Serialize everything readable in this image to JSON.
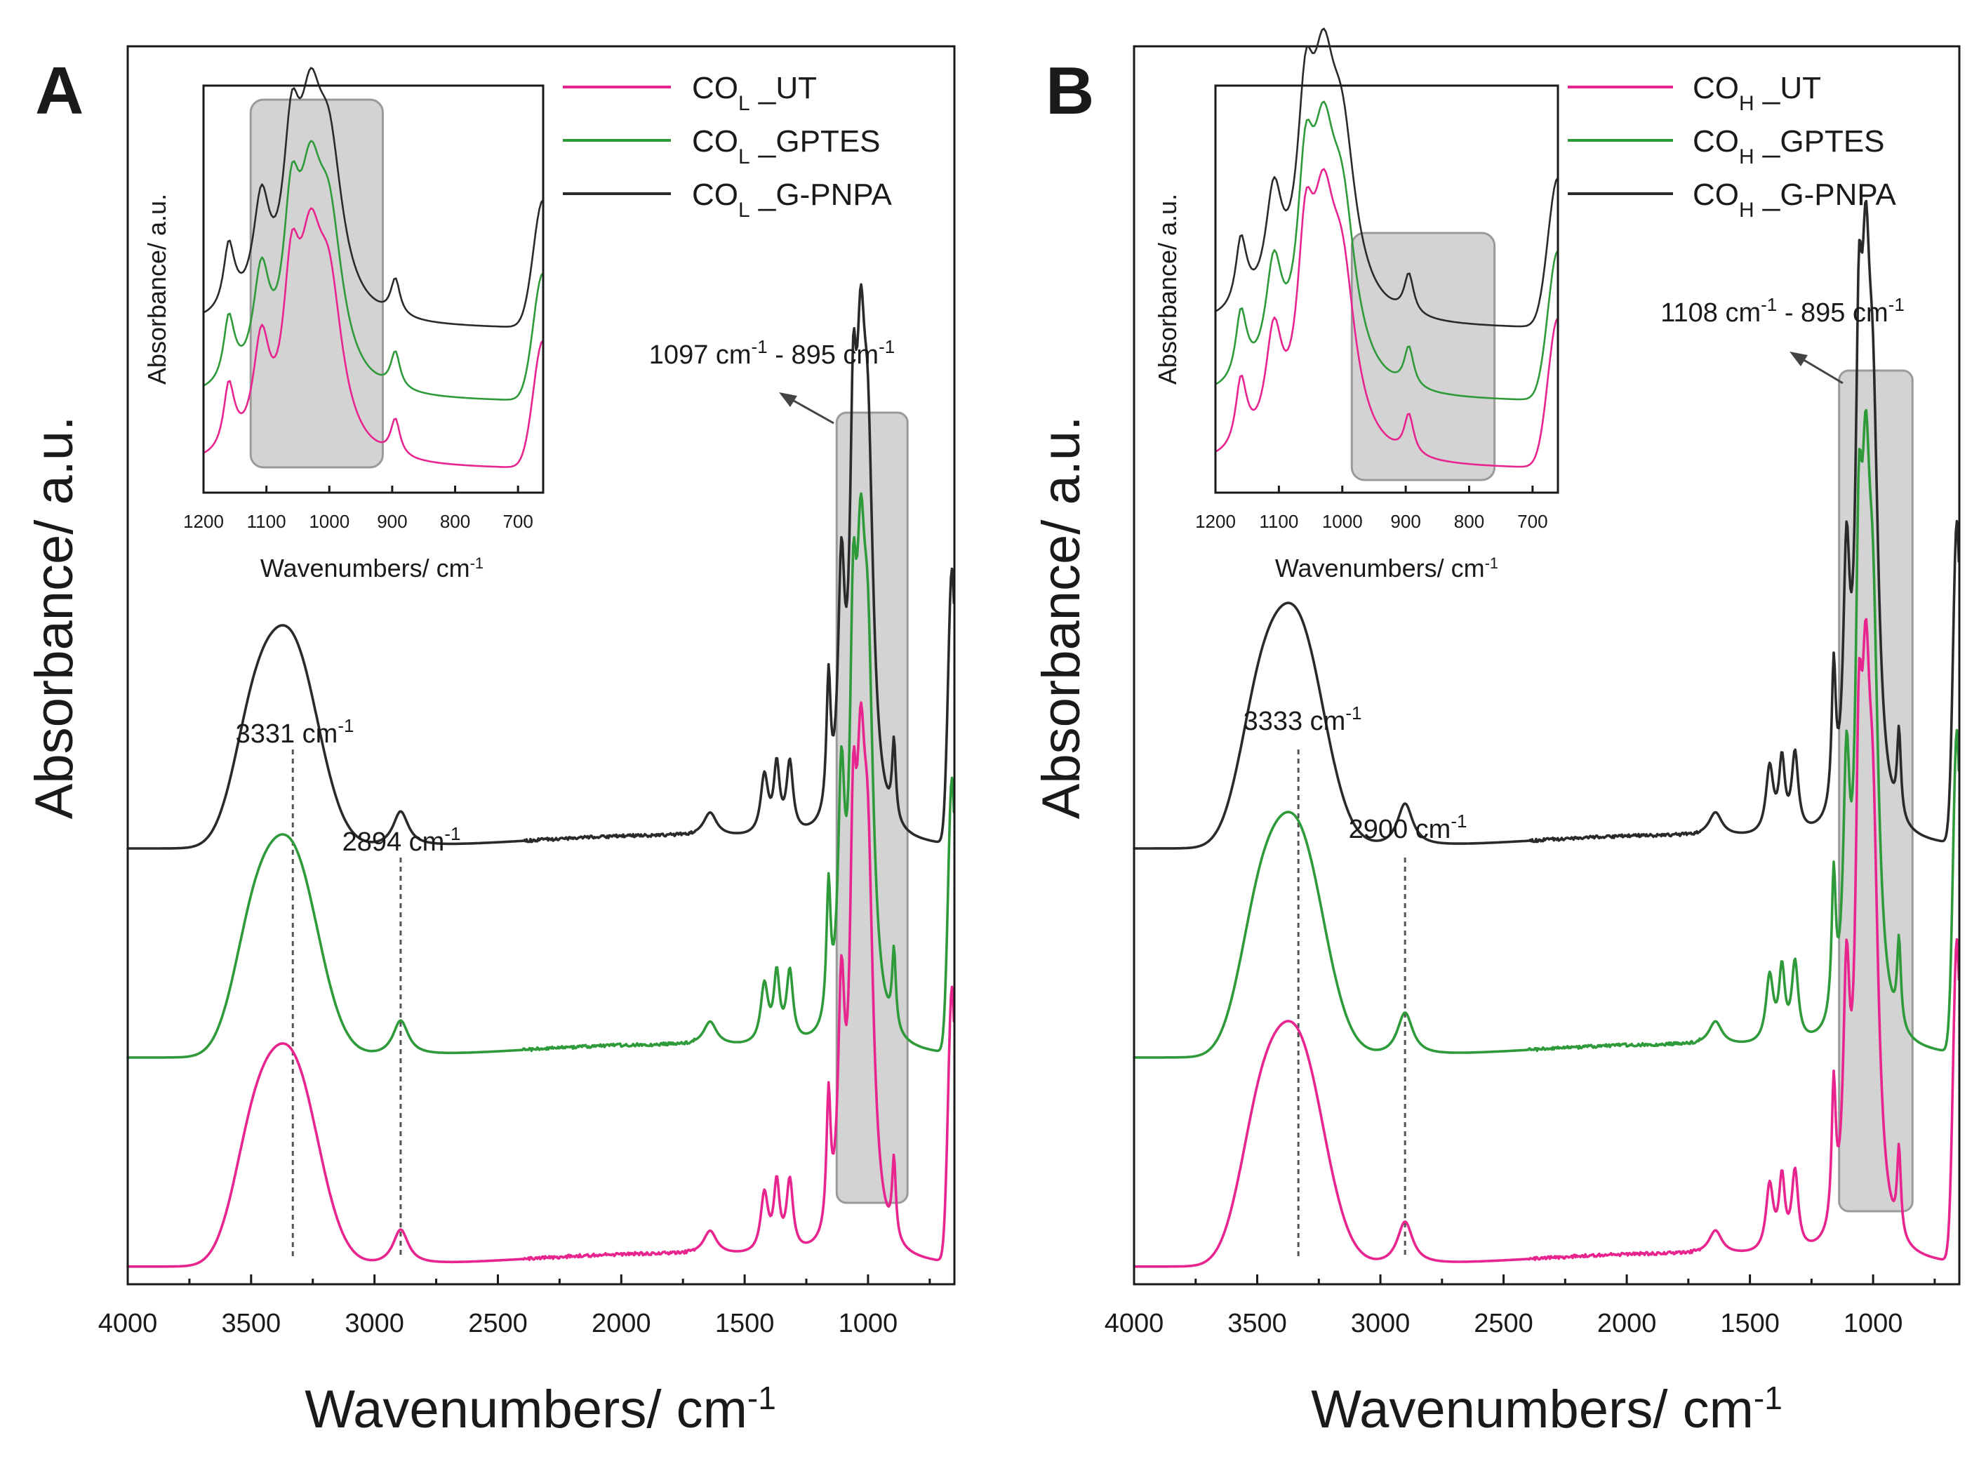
{
  "colors": {
    "pink": "#e8258f",
    "green": "#2e9a3a",
    "black": "#2a2a2a"
  },
  "chart_data": [
    {
      "panel": "A",
      "type": "line",
      "xlabel": "Wavenumbers/ cm",
      "xlabel_sup": "-1",
      "ylabel": "Absorbance/ a.u.",
      "xlim": [
        4000,
        650
      ],
      "x_ticks": [
        "4000",
        "3500",
        "3000",
        "2500",
        "2000",
        "1500",
        "1000"
      ],
      "legend": [
        {
          "base": "CO",
          "sub": "L",
          "suffix": " _UT",
          "color": "#e8258f"
        },
        {
          "base": "CO",
          "sub": "L",
          "suffix": " _GPTES",
          "color": "#2e9a3a"
        },
        {
          "base": "CO",
          "sub": "L",
          "suffix": " _G-PNPA",
          "color": "#2a2a2a"
        }
      ],
      "series": [
        {
          "name": "COL_UT",
          "color": "#e8258f",
          "offset": 0.0,
          "peaks": [
            [
              3331,
              0.5
            ],
            [
              2894,
              0.09
            ],
            [
              1640,
              0.06
            ],
            [
              1420,
              0.15
            ],
            [
              1370,
              0.17
            ],
            [
              1317,
              0.18
            ],
            [
              1160,
              0.34
            ],
            [
              1108,
              0.58
            ],
            [
              1060,
              0.8
            ],
            [
              1030,
              0.87
            ],
            [
              1000,
              0.82
            ],
            [
              895,
              0.2
            ],
            [
              660,
              0.7
            ]
          ]
        },
        {
          "name": "COL_GPTES",
          "color": "#2e9a3a",
          "offset": 0.56,
          "peaks": [
            [
              3331,
              0.5
            ],
            [
              2894,
              0.09
            ],
            [
              1640,
              0.06
            ],
            [
              1420,
              0.15
            ],
            [
              1370,
              0.17
            ],
            [
              1317,
              0.18
            ],
            [
              1160,
              0.34
            ],
            [
              1108,
              0.58
            ],
            [
              1060,
              0.8
            ],
            [
              1030,
              0.87
            ],
            [
              1000,
              0.82
            ],
            [
              895,
              0.2
            ],
            [
              660,
              0.7
            ]
          ]
        },
        {
          "name": "COL_G-PNPA",
          "color": "#2a2a2a",
          "offset": 1.12,
          "peaks": [
            [
              3331,
              0.5
            ],
            [
              2894,
              0.09
            ],
            [
              1640,
              0.06
            ],
            [
              1420,
              0.15
            ],
            [
              1370,
              0.17
            ],
            [
              1317,
              0.18
            ],
            [
              1160,
              0.34
            ],
            [
              1108,
              0.58
            ],
            [
              1060,
              0.8
            ],
            [
              1030,
              0.87
            ],
            [
              1000,
              0.82
            ],
            [
              895,
              0.2
            ],
            [
              660,
              0.7
            ]
          ]
        }
      ],
      "highlight": {
        "from": 1097,
        "to": 895,
        "label": "1097 cm",
        "label_sup": "-1",
        "label2": " - 895 cm",
        "label2_sup": "-1"
      },
      "annotations": [
        {
          "x": 3331,
          "label": "3331 cm",
          "sup": "-1"
        },
        {
          "x": 2894,
          "label": "2894 cm",
          "sup": "-1"
        }
      ],
      "inset": {
        "xlim": [
          1200,
          660
        ],
        "x_ticks": [
          "1200",
          "1100",
          "1000",
          "900",
          "800",
          "700"
        ],
        "xlabel": "Wavenumbers/ cm",
        "xlabel_sup": "-1",
        "ylabel": "Absorbance/ a.u.",
        "highlight": {
          "from": 1125,
          "to": 915
        }
      }
    },
    {
      "panel": "B",
      "type": "line",
      "xlabel": "Wavenumbers/ cm",
      "xlabel_sup": "-1",
      "ylabel": "Absorbance/ a.u.",
      "xlim": [
        4000,
        650
      ],
      "x_ticks": [
        "4000",
        "3500",
        "3000",
        "2500",
        "2000",
        "1500",
        "1000"
      ],
      "legend": [
        {
          "base": "CO",
          "sub": "H",
          "suffix": " _UT",
          "color": "#e8258f"
        },
        {
          "base": "CO",
          "sub": "H",
          "suffix": " _GPTES",
          "color": "#2e9a3a"
        },
        {
          "base": "CO",
          "sub": "H",
          "suffix": " _G-PNPA",
          "color": "#2a2a2a"
        }
      ],
      "series": [
        {
          "name": "COH_UT",
          "color": "#e8258f",
          "offset": 0.0,
          "peaks": [
            [
              3333,
              0.55
            ],
            [
              2900,
              0.11
            ],
            [
              1640,
              0.06
            ],
            [
              1420,
              0.17
            ],
            [
              1370,
              0.18
            ],
            [
              1317,
              0.2
            ],
            [
              1160,
              0.36
            ],
            [
              1108,
              0.6
            ],
            [
              1058,
              0.92
            ],
            [
              1030,
              1.02
            ],
            [
              1000,
              0.86
            ],
            [
              895,
              0.22
            ],
            [
              660,
              0.82
            ]
          ]
        },
        {
          "name": "COH_GPTES",
          "color": "#2e9a3a",
          "offset": 0.56,
          "peaks": [
            [
              3333,
              0.55
            ],
            [
              2900,
              0.11
            ],
            [
              1640,
              0.06
            ],
            [
              1420,
              0.17
            ],
            [
              1370,
              0.18
            ],
            [
              1317,
              0.2
            ],
            [
              1160,
              0.36
            ],
            [
              1108,
              0.6
            ],
            [
              1058,
              0.92
            ],
            [
              1030,
              1.02
            ],
            [
              1000,
              0.86
            ],
            [
              895,
              0.22
            ],
            [
              660,
              0.82
            ]
          ]
        },
        {
          "name": "COH_G-PNPA",
          "color": "#2a2a2a",
          "offset": 1.12,
          "peaks": [
            [
              3333,
              0.55
            ],
            [
              2900,
              0.11
            ],
            [
              1640,
              0.06
            ],
            [
              1420,
              0.17
            ],
            [
              1370,
              0.18
            ],
            [
              1317,
              0.2
            ],
            [
              1160,
              0.36
            ],
            [
              1108,
              0.6
            ],
            [
              1058,
              0.92
            ],
            [
              1030,
              1.02
            ],
            [
              1000,
              0.86
            ],
            [
              895,
              0.22
            ],
            [
              660,
              0.82
            ]
          ]
        }
      ],
      "highlight": {
        "from": 1108,
        "to": 895,
        "label": "1108 cm",
        "label_sup": "-1",
        "label2": " - 895 cm",
        "label2_sup": "-1"
      },
      "annotations": [
        {
          "x": 3333,
          "label": "3333 cm",
          "sup": "-1"
        },
        {
          "x": 2900,
          "label": "2900 cm",
          "sup": "-1"
        }
      ],
      "inset": {
        "xlim": [
          1200,
          660
        ],
        "x_ticks": [
          "1200",
          "1100",
          "1000",
          "900",
          "800",
          "700"
        ],
        "xlabel": "Wavenumbers/ cm",
        "xlabel_sup": "-1",
        "ylabel": "Absorbance/ a.u.",
        "highlight": {
          "from": 985,
          "to": 760
        }
      }
    }
  ]
}
